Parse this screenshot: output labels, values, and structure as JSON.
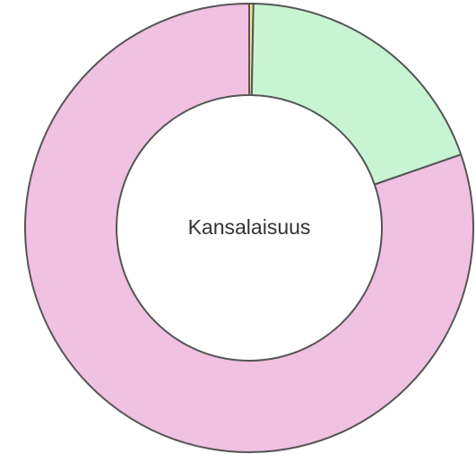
{
  "chart_data": {
    "type": "donut",
    "title": "Kansalaisuus",
    "categories": [
      null,
      null,
      null
    ],
    "values": [
      0.3,
      19.4,
      80.3
    ],
    "colors": [
      "#f3e28c",
      "#c7f5d3",
      "#f0c1e1"
    ]
  }
}
